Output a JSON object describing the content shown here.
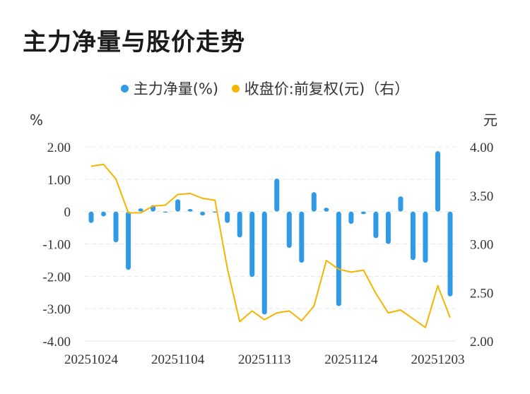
{
  "title": "主力净量与股价走势",
  "legend": [
    {
      "label": "主力净量(%)",
      "color": "#2f9be8"
    },
    {
      "label": "收盘价:前复权(元)（右）",
      "color": "#f4b400"
    }
  ],
  "chart_data": {
    "type": "bar+line",
    "left_unit": "%",
    "right_unit": "元",
    "left_ticks": [
      "2.00",
      "1.00",
      "0",
      "-1.00",
      "-2.00",
      "-3.00",
      "-4.00"
    ],
    "right_ticks": [
      "4.00",
      "3.50",
      "3.00",
      "2.50",
      "2.00"
    ],
    "x_tick_labels": [
      "20251024",
      "20251104",
      "20251113",
      "20251124",
      "20251203"
    ],
    "x_tick_indices": [
      0,
      7,
      14,
      21,
      28
    ],
    "ylim_left": [
      -4,
      2
    ],
    "ylim_right": [
      2,
      4
    ],
    "series": [
      {
        "name": "主力净量(%)",
        "type": "bar",
        "color": "#2f9be8",
        "values": [
          -0.35,
          -0.15,
          -0.95,
          -1.8,
          0.1,
          0.2,
          -0.03,
          0.38,
          0.08,
          -0.12,
          -0.03,
          -0.35,
          -0.8,
          -2.02,
          -3.18,
          1.02,
          -1.12,
          -1.58,
          0.6,
          0.12,
          -2.92,
          -0.38,
          -0.08,
          -0.82,
          -1.0,
          0.47,
          -1.5,
          -1.58,
          1.87,
          -2.62
        ]
      },
      {
        "name": "收盘价:前复权(元)（右）",
        "type": "line",
        "color": "#f4b400",
        "values": [
          3.8,
          3.82,
          3.67,
          3.32,
          3.32,
          3.39,
          3.4,
          3.51,
          3.52,
          3.47,
          3.45,
          2.75,
          2.2,
          2.31,
          2.22,
          2.29,
          2.31,
          2.21,
          2.36,
          2.83,
          2.74,
          2.71,
          2.73,
          2.49,
          2.29,
          2.32,
          2.23,
          2.14,
          2.57,
          2.24
        ]
      }
    ]
  }
}
